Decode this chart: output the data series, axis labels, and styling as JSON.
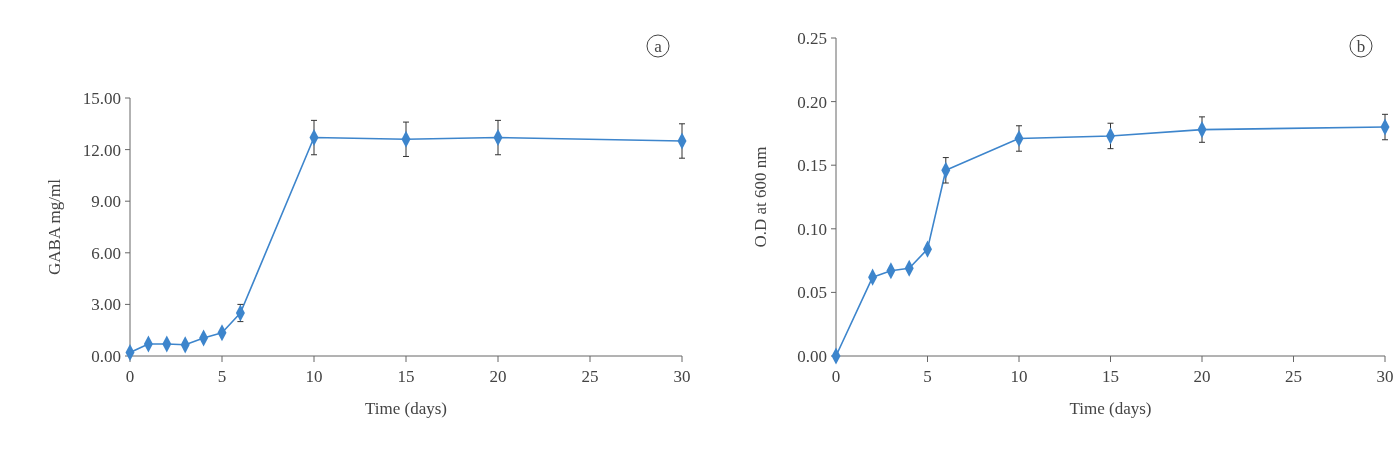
{
  "chart_data": [
    {
      "type": "line",
      "xlabel": "Time (days)",
      "ylabel": "GABA mg/ml",
      "annotations": [
        "a"
      ],
      "x": [
        0,
        1,
        2,
        3,
        4,
        5,
        6,
        10,
        15,
        20,
        30
      ],
      "series": [
        {
          "color": "#3d85cc",
          "values": [
            0.2,
            0.7,
            0.7,
            0.65,
            1.05,
            1.35,
            2.5,
            12.7,
            12.6,
            12.7,
            12.5
          ],
          "errors": [
            null,
            null,
            null,
            null,
            null,
            null,
            0.5,
            1.0,
            1.0,
            1.0,
            1.0
          ]
        }
      ],
      "xlim": [
        0,
        30
      ],
      "xticks": [
        0,
        5,
        10,
        15,
        20,
        25,
        30
      ],
      "ylim": [
        0,
        15
      ],
      "yticks": [
        {
          "value": 0,
          "label": "0.00"
        },
        {
          "value": 3,
          "label": "3.00"
        },
        {
          "value": 6,
          "label": "6.00"
        },
        {
          "value": 9,
          "label": "9.00"
        },
        {
          "value": 12,
          "label": "12.00"
        },
        {
          "value": 15,
          "label": "15.00"
        }
      ],
      "grid": false,
      "marker": "diamond",
      "line_style": "solid"
    },
    {
      "type": "line",
      "xlabel": "Time (days)",
      "ylabel": "O.D at 600 nm",
      "annotations": [
        "b"
      ],
      "x": [
        0,
        2,
        3,
        4,
        5,
        6,
        10,
        15,
        20,
        30
      ],
      "series": [
        {
          "color": "#3d85cc",
          "values": [
            0,
            0.062,
            0.067,
            0.069,
            0.084,
            0.146,
            0.171,
            0.173,
            0.178,
            0.18
          ],
          "errors": [
            null,
            null,
            null,
            null,
            null,
            0.01,
            0.01,
            0.01,
            0.01,
            0.01
          ]
        }
      ],
      "xlim": [
        0,
        30
      ],
      "xticks": [
        0,
        5,
        10,
        15,
        20,
        25,
        30
      ],
      "ylim": [
        0,
        0.25
      ],
      "yticks": [
        {
          "value": 0,
          "label": "0.00"
        },
        {
          "value": 0.05,
          "label": "0.05"
        },
        {
          "value": 0.1,
          "label": "0.10"
        },
        {
          "value": 0.15,
          "label": "0.15"
        },
        {
          "value": 0.2,
          "label": "0.20"
        },
        {
          "value": 0.25,
          "label": "0.25"
        }
      ],
      "grid": false,
      "marker": "diamond",
      "line_style": "solid"
    }
  ]
}
